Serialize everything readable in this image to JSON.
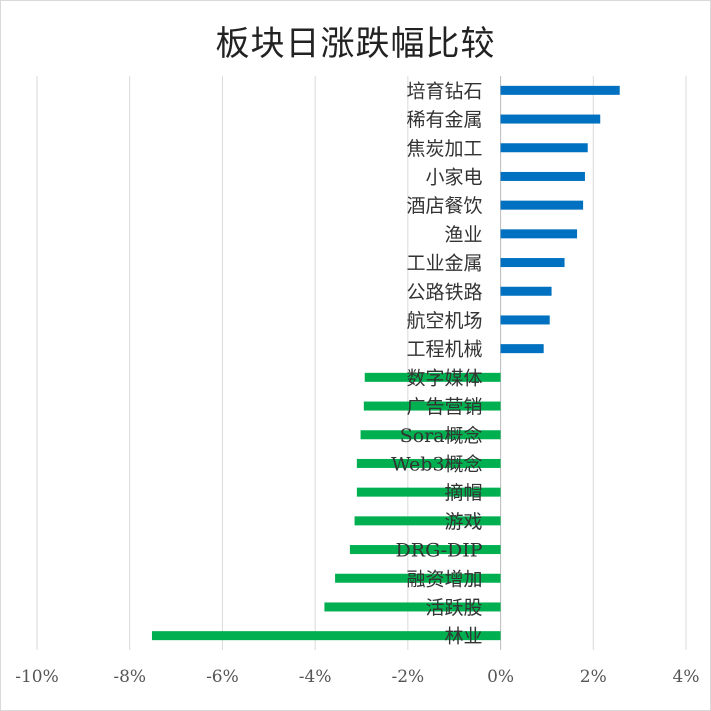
{
  "chart_data": {
    "type": "bar",
    "orientation": "horizontal",
    "title": "板块日涨跌幅比较",
    "xlabel": "",
    "ylabel": "",
    "xlim": [
      -10,
      4
    ],
    "x_ticks": [
      -10,
      -8,
      -6,
      -4,
      -2,
      0,
      2,
      4
    ],
    "x_tick_labels": [
      "-10%",
      "-8%",
      "-6%",
      "-4%",
      "-2%",
      "0%",
      "2%",
      "4%"
    ],
    "grid": "vertical",
    "legend": "none",
    "categories": [
      "培育钻石",
      "稀有金属",
      "焦炭加工",
      "小家电",
      "酒店餐饮",
      "渔业",
      "工业金属",
      "公路铁路",
      "航空机场",
      "工程机械",
      "数字媒体",
      "广告营销",
      "Sora概念",
      "Web3概念",
      "摘帽",
      "游戏",
      "DRG-DIP",
      "融资增加",
      "活跃股",
      "林业"
    ],
    "values": [
      2.57,
      2.15,
      1.88,
      1.82,
      1.78,
      1.65,
      1.38,
      1.1,
      1.06,
      0.93,
      -2.93,
      -2.95,
      -3.02,
      -3.1,
      -3.1,
      -3.15,
      -3.25,
      -3.57,
      -3.8,
      -7.52
    ],
    "colors": {
      "positive": "#0070c0",
      "negative": "#00b050"
    }
  }
}
